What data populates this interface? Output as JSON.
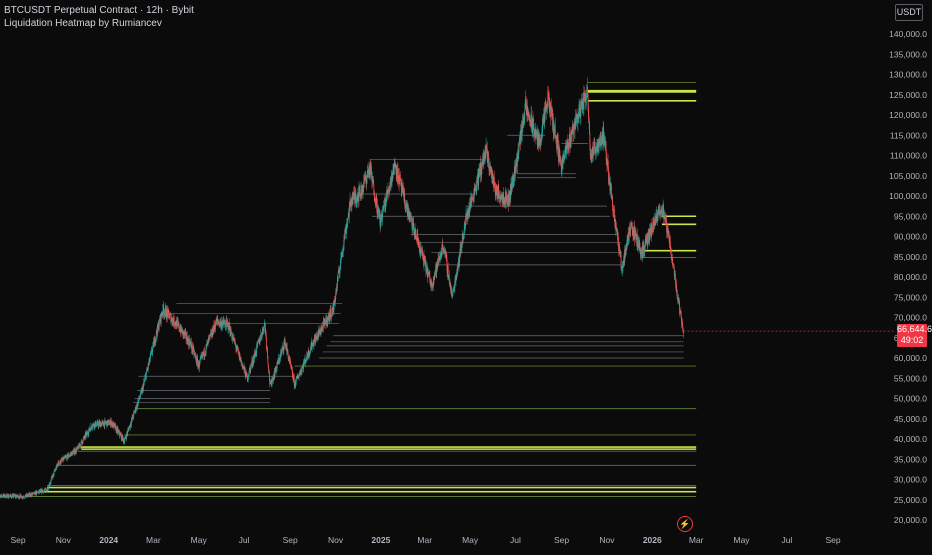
{
  "legend": {
    "symbol_line": "BTCUSDT Perpetual Contract · 12h · Bybit",
    "indicator_line": "Liquidation Heatmap by Rumiancev"
  },
  "currency_button": "USDT",
  "last_price": {
    "value": "66,644.6",
    "countdown": "49:02"
  },
  "alert_icon_glyph": "⚡",
  "colors": {
    "background": "#0b0b0c",
    "up": "#26a69a",
    "down": "#ef5350",
    "bright_level": "#c8e64a",
    "dim_level": "#5f7a2e",
    "grey_level": "#8a8e96",
    "axis_text": "#b2b5be",
    "last_price_bg": "#f23645"
  },
  "chart_data": {
    "type": "candlestick",
    "title": "BTCUSDT Perpetual Contract · 12h · Bybit",
    "indicator": "Liquidation Heatmap by Rumiancev",
    "ylim": [
      18000,
      146000
    ],
    "y_ticks": [
      "140,000.0",
      "135,000.0",
      "130,000.0",
      "125,000.0",
      "120,000.0",
      "115,000.0",
      "110,000.0",
      "105,000.0",
      "100,000.0",
      "95,000.0",
      "90,000.0",
      "85,000.0",
      "80,000.0",
      "75,000.0",
      "70,000.0",
      "65,000.0",
      "60,000.0",
      "55,000.0",
      "50,000.0",
      "45,000.0",
      "40,000.0",
      "35,000.0",
      "30,000.0",
      "25,000.0",
      "20,000.0"
    ],
    "y_tick_values": [
      140000,
      135000,
      130000,
      125000,
      120000,
      115000,
      110000,
      105000,
      100000,
      95000,
      90000,
      85000,
      80000,
      75000,
      70000,
      65000,
      60000,
      55000,
      50000,
      45000,
      40000,
      35000,
      30000,
      25000,
      20000
    ],
    "x_ticks": [
      {
        "label": "Sep",
        "date": "2023-09-01"
      },
      {
        "label": "Nov",
        "date": "2023-11-01"
      },
      {
        "label": "2024",
        "date": "2024-01-01",
        "bold": true
      },
      {
        "label": "Mar",
        "date": "2024-03-01"
      },
      {
        "label": "May",
        "date": "2024-05-01"
      },
      {
        "label": "Jul",
        "date": "2024-07-01"
      },
      {
        "label": "Sep",
        "date": "2024-09-01"
      },
      {
        "label": "Nov",
        "date": "2024-11-01"
      },
      {
        "label": "2025",
        "date": "2025-01-01",
        "bold": true
      },
      {
        "label": "Mar",
        "date": "2025-03-01"
      },
      {
        "label": "May",
        "date": "2025-05-01"
      },
      {
        "label": "Jul",
        "date": "2025-07-01"
      },
      {
        "label": "Sep",
        "date": "2025-09-01"
      },
      {
        "label": "Nov",
        "date": "2025-11-01"
      },
      {
        "label": "2026",
        "date": "2026-01-01",
        "bold": true
      },
      {
        "label": "Mar",
        "date": "2026-03-01"
      },
      {
        "label": "May",
        "date": "2026-05-01"
      },
      {
        "label": "Jul",
        "date": "2026-07-01"
      },
      {
        "label": "Sep",
        "date": "2026-09-01"
      }
    ],
    "x_start": "2023-08-01",
    "x_end": "2026-10-01",
    "price_path": [
      [
        "2023-08-01",
        26000
      ],
      [
        "2023-09-10",
        25800
      ],
      [
        "2023-10-10",
        27500
      ],
      [
        "2023-10-25",
        34000
      ],
      [
        "2023-11-20",
        37500
      ],
      [
        "2023-12-10",
        43500
      ],
      [
        "2024-01-05",
        44000
      ],
      [
        "2024-01-22",
        39500
      ],
      [
        "2024-02-15",
        52000
      ],
      [
        "2024-03-05",
        66000
      ],
      [
        "2024-03-14",
        72000
      ],
      [
        "2024-04-01",
        68500
      ],
      [
        "2024-04-20",
        63500
      ],
      [
        "2024-05-01",
        58000
      ],
      [
        "2024-05-25",
        69000
      ],
      [
        "2024-06-10",
        68000
      ],
      [
        "2024-07-05",
        55000
      ],
      [
        "2024-07-29",
        68500
      ],
      [
        "2024-08-05",
        53000
      ],
      [
        "2024-08-25",
        64000
      ],
      [
        "2024-09-07",
        53500
      ],
      [
        "2024-10-01",
        63500
      ],
      [
        "2024-10-29",
        72000
      ],
      [
        "2024-11-13",
        90000
      ],
      [
        "2024-11-22",
        99000
      ],
      [
        "2024-12-05",
        101000
      ],
      [
        "2024-12-17",
        107000
      ],
      [
        "2024-12-31",
        93500
      ],
      [
        "2025-01-20",
        108000
      ],
      [
        "2025-02-03",
        98000
      ],
      [
        "2025-02-28",
        84000
      ],
      [
        "2025-03-10",
        78000
      ],
      [
        "2025-03-26",
        88000
      ],
      [
        "2025-04-07",
        75000
      ],
      [
        "2025-04-25",
        94000
      ],
      [
        "2025-05-22",
        111000
      ],
      [
        "2025-06-05",
        101000
      ],
      [
        "2025-06-22",
        99000
      ],
      [
        "2025-07-03",
        109000
      ],
      [
        "2025-07-14",
        122000
      ],
      [
        "2025-08-02",
        113000
      ],
      [
        "2025-08-14",
        124000
      ],
      [
        "2025-09-01",
        107500
      ],
      [
        "2025-09-18",
        117500
      ],
      [
        "2025-10-06",
        126000
      ],
      [
        "2025-10-10",
        110000
      ],
      [
        "2025-10-27",
        115000
      ],
      [
        "2025-11-21",
        82000
      ],
      [
        "2025-12-03",
        93000
      ],
      [
        "2025-12-18",
        86000
      ],
      [
        "2026-01-14",
        97500
      ],
      [
        "2026-01-25",
        88000
      ],
      [
        "2026-02-05",
        74000
      ],
      [
        "2026-02-12",
        66644.6
      ]
    ],
    "last_price": 66644.6,
    "liquidation_levels": [
      {
        "price": 128000,
        "start": "2025-10-06",
        "end": "2026-03-01",
        "tier": "dim"
      },
      {
        "price": 126000,
        "start": "2025-10-06",
        "end": "2026-03-01",
        "tier": "bright"
      },
      {
        "price": 125700,
        "start": "2025-10-06",
        "end": "2026-03-01",
        "tier": "bright"
      },
      {
        "price": 123500,
        "start": "2025-10-06",
        "end": "2026-03-01",
        "tier": "bright"
      },
      {
        "price": 95000,
        "start": "2026-01-14",
        "end": "2026-03-01",
        "tier": "bright"
      },
      {
        "price": 93000,
        "start": "2026-01-14",
        "end": "2026-03-01",
        "tier": "bright"
      },
      {
        "price": 86500,
        "start": "2025-12-18",
        "end": "2026-03-01",
        "tier": "bright"
      },
      {
        "price": 84800,
        "start": "2025-12-18",
        "end": "2026-03-01",
        "tier": "dim"
      },
      {
        "price": 58000,
        "start": "2024-09-07",
        "end": "2026-03-01",
        "tier": "dim"
      },
      {
        "price": 47500,
        "start": "2024-02-05",
        "end": "2026-03-01",
        "tier": "dim"
      },
      {
        "price": 41000,
        "start": "2024-01-22",
        "end": "2026-03-01",
        "tier": "dim"
      },
      {
        "price": 38000,
        "start": "2023-11-25",
        "end": "2026-03-01",
        "tier": "bright"
      },
      {
        "price": 37500,
        "start": "2023-11-25",
        "end": "2026-03-01",
        "tier": "bright"
      },
      {
        "price": 37000,
        "start": "2023-11-20",
        "end": "2026-03-01",
        "tier": "dim"
      },
      {
        "price": 33500,
        "start": "2023-10-25",
        "end": "2026-03-01",
        "tier": "dim"
      },
      {
        "price": 28500,
        "start": "2023-10-10",
        "end": "2026-03-01",
        "tier": "dim"
      },
      {
        "price": 28000,
        "start": "2023-10-10",
        "end": "2026-03-01",
        "tier": "bright"
      },
      {
        "price": 27000,
        "start": "2023-10-01",
        "end": "2026-03-01",
        "tier": "bright"
      },
      {
        "price": 25800,
        "start": "2023-09-10",
        "end": "2026-03-01",
        "tier": "dim"
      }
    ],
    "grey_levels": [
      {
        "price": 115000,
        "start": "2025-06-20",
        "end": "2025-08-10"
      },
      {
        "price": 113000,
        "start": "2025-09-01",
        "end": "2025-10-06"
      },
      {
        "price": 109000,
        "start": "2024-12-17",
        "end": "2025-05-20"
      },
      {
        "price": 105500,
        "start": "2025-07-03",
        "end": "2025-09-20"
      },
      {
        "price": 104500,
        "start": "2025-07-03",
        "end": "2025-09-20"
      },
      {
        "price": 100500,
        "start": "2024-12-05",
        "end": "2025-05-10"
      },
      {
        "price": 97500,
        "start": "2025-04-25",
        "end": "2025-11-01"
      },
      {
        "price": 95000,
        "start": "2024-12-20",
        "end": "2025-11-05"
      },
      {
        "price": 90500,
        "start": "2025-02-10",
        "end": "2025-11-15"
      },
      {
        "price": 88500,
        "start": "2025-02-20",
        "end": "2025-11-20"
      },
      {
        "price": 86000,
        "start": "2025-03-10",
        "end": "2025-11-21"
      },
      {
        "price": 83000,
        "start": "2025-03-20",
        "end": "2025-11-21"
      },
      {
        "price": 73500,
        "start": "2024-04-01",
        "end": "2024-11-10"
      },
      {
        "price": 71000,
        "start": "2024-03-20",
        "end": "2024-11-08"
      },
      {
        "price": 68500,
        "start": "2024-05-25",
        "end": "2024-11-06"
      },
      {
        "price": 65500,
        "start": "2024-10-29",
        "end": "2026-02-12"
      },
      {
        "price": 64000,
        "start": "2024-10-25",
        "end": "2026-02-12"
      },
      {
        "price": 63000,
        "start": "2024-10-20",
        "end": "2026-02-12"
      },
      {
        "price": 61500,
        "start": "2024-10-15",
        "end": "2026-02-12"
      },
      {
        "price": 60000,
        "start": "2024-10-10",
        "end": "2026-02-12"
      },
      {
        "price": 55500,
        "start": "2024-02-10",
        "end": "2024-09-07"
      },
      {
        "price": 52000,
        "start": "2024-02-08",
        "end": "2024-08-05"
      },
      {
        "price": 50000,
        "start": "2024-02-05",
        "end": "2024-08-05"
      },
      {
        "price": 49000,
        "start": "2024-02-03",
        "end": "2024-08-05"
      }
    ]
  }
}
